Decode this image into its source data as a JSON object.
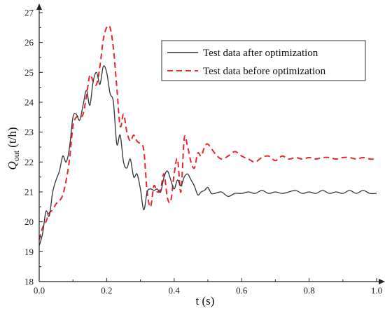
{
  "chart_data": {
    "type": "line",
    "xlabel": "t (s)",
    "ylabel_main": "Q",
    "ylabel_sub": "out",
    "ylabel_unit": " (t/h)",
    "xlim": [
      0.0,
      1.0
    ],
    "ylim": [
      18,
      27
    ],
    "xticks": [
      "0.0",
      "0.2",
      "0.4",
      "0.6",
      "0.8",
      "1.0"
    ],
    "yticks": [
      "18",
      "19",
      "20",
      "21",
      "22",
      "23",
      "24",
      "25",
      "26",
      "27"
    ],
    "legend_position": "top-right",
    "series": [
      {
        "name": "Test data after optimization",
        "color": "#333333",
        "dash": "solid",
        "x": [
          0.0,
          0.01,
          0.02,
          0.03,
          0.04,
          0.05,
          0.06,
          0.07,
          0.08,
          0.09,
          0.1,
          0.11,
          0.12,
          0.13,
          0.14,
          0.15,
          0.16,
          0.17,
          0.18,
          0.19,
          0.2,
          0.21,
          0.22,
          0.23,
          0.24,
          0.25,
          0.26,
          0.27,
          0.28,
          0.29,
          0.3,
          0.31,
          0.32,
          0.33,
          0.34,
          0.35,
          0.36,
          0.37,
          0.38,
          0.39,
          0.4,
          0.41,
          0.42,
          0.43,
          0.44,
          0.45,
          0.46,
          0.47,
          0.48,
          0.49,
          0.5,
          0.51,
          0.52,
          0.54,
          0.56,
          0.58,
          0.6,
          0.62,
          0.64,
          0.66,
          0.68,
          0.7,
          0.72,
          0.74,
          0.76,
          0.78,
          0.8,
          0.82,
          0.84,
          0.86,
          0.88,
          0.9,
          0.92,
          0.94,
          0.96,
          0.98,
          1.0
        ],
        "y": [
          19.2,
          19.6,
          20.35,
          20.2,
          21.0,
          21.4,
          21.7,
          22.2,
          22.0,
          22.5,
          23.5,
          23.6,
          23.4,
          23.9,
          24.4,
          23.9,
          24.7,
          25.0,
          24.6,
          25.2,
          25.0,
          24.3,
          24.0,
          22.6,
          22.9,
          22.0,
          21.8,
          22.1,
          21.5,
          21.6,
          21.1,
          20.4,
          21.0,
          21.1,
          21.05,
          21.1,
          21.0,
          21.5,
          21.7,
          21.4,
          21.1,
          21.4,
          21.2,
          21.5,
          21.6,
          21.4,
          21.2,
          20.9,
          21.0,
          21.05,
          21.15,
          20.95,
          20.95,
          21.0,
          20.85,
          20.95,
          20.95,
          21.0,
          20.95,
          21.05,
          20.95,
          21.0,
          20.95,
          21.0,
          21.05,
          20.95,
          21.0,
          20.95,
          21.05,
          20.95,
          21.0,
          20.95,
          21.05,
          20.95,
          21.05,
          20.95,
          20.95
        ]
      },
      {
        "name": "Test data before optimization",
        "color": "#e8262c",
        "dash": "dashed",
        "x": [
          0.0,
          0.01,
          0.02,
          0.03,
          0.04,
          0.05,
          0.06,
          0.07,
          0.08,
          0.09,
          0.1,
          0.11,
          0.12,
          0.13,
          0.14,
          0.15,
          0.16,
          0.17,
          0.18,
          0.19,
          0.2,
          0.21,
          0.22,
          0.23,
          0.24,
          0.25,
          0.26,
          0.27,
          0.28,
          0.29,
          0.3,
          0.31,
          0.32,
          0.33,
          0.34,
          0.35,
          0.36,
          0.37,
          0.38,
          0.39,
          0.4,
          0.41,
          0.42,
          0.43,
          0.44,
          0.45,
          0.46,
          0.47,
          0.48,
          0.49,
          0.5,
          0.52,
          0.54,
          0.56,
          0.58,
          0.6,
          0.62,
          0.64,
          0.66,
          0.68,
          0.7,
          0.72,
          0.74,
          0.76,
          0.78,
          0.8,
          0.82,
          0.84,
          0.86,
          0.88,
          0.9,
          0.92,
          0.94,
          0.96,
          0.98,
          1.0
        ],
        "y": [
          19.4,
          19.8,
          20.0,
          20.3,
          20.4,
          20.6,
          20.7,
          20.9,
          21.4,
          22.1,
          23.2,
          23.5,
          23.5,
          23.6,
          24.2,
          24.9,
          24.7,
          24.6,
          25.2,
          26.1,
          26.5,
          26.5,
          25.8,
          24.5,
          23.2,
          23.6,
          23.0,
          22.7,
          22.9,
          22.7,
          22.6,
          22.4,
          21.0,
          20.5,
          21.2,
          21.0,
          21.1,
          21.6,
          20.8,
          20.7,
          21.6,
          22.1,
          21.0,
          22.8,
          22.5,
          22.0,
          21.8,
          22.3,
          22.2,
          22.5,
          22.6,
          22.3,
          22.1,
          22.2,
          22.35,
          22.2,
          22.1,
          22.0,
          22.15,
          22.2,
          22.05,
          22.2,
          22.1,
          22.15,
          22.1,
          22.15,
          22.1,
          22.15,
          22.15,
          22.1,
          22.15,
          22.15,
          22.1,
          22.15,
          22.1,
          22.1
        ]
      }
    ]
  }
}
